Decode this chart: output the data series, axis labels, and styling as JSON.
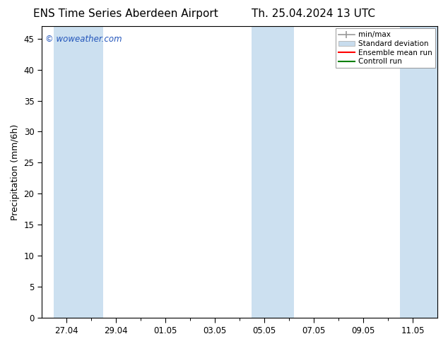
{
  "title_left": "ENS Time Series Aberdeen Airport",
  "title_right": "Th. 25.04.2024 13 UTC",
  "ylabel": "Precipitation (mm/6h)",
  "watermark": "© woweather.com",
  "ylim": [
    0,
    47
  ],
  "yticks": [
    0,
    5,
    10,
    15,
    20,
    25,
    30,
    35,
    40,
    45
  ],
  "xtick_labels": [
    "27.04",
    "29.04",
    "01.05",
    "03.05",
    "05.05",
    "07.05",
    "09.05",
    "11.05"
  ],
  "xtick_positions": [
    1,
    3,
    5,
    7,
    9,
    11,
    13,
    15
  ],
  "xlim": [
    0,
    16
  ],
  "shaded_bands": [
    {
      "xmin": 0.5,
      "xmax": 2.5
    },
    {
      "xmin": 8.5,
      "xmax": 10.2
    },
    {
      "xmin": 14.5,
      "xmax": 16.0
    }
  ],
  "band_color": "#cce0f0",
  "background_color": "#ffffff",
  "title_fontsize": 11,
  "label_fontsize": 9,
  "tick_fontsize": 8.5,
  "watermark_color": "#2255bb",
  "minmax_color": "#999999",
  "std_color": "#c8dced",
  "ensemble_color": "#ff0000",
  "control_color": "#008000",
  "legend_labels": [
    "min/max",
    "Standard deviation",
    "Ensemble mean run",
    "Controll run"
  ]
}
